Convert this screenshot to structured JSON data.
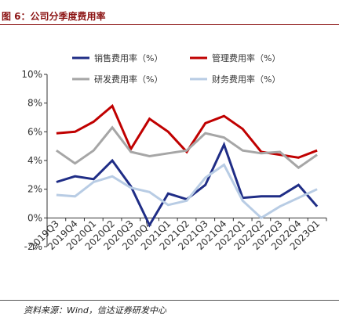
{
  "header": {
    "title": "图 6：公司分季度费用率"
  },
  "source": {
    "text": "资料来源：Wind，信达证券研发中心"
  },
  "chart_data": {
    "type": "line",
    "categories": [
      "2019Q3",
      "2019Q4",
      "2020Q1",
      "2020Q2",
      "2020Q3",
      "2020Q4",
      "2021Q1",
      "2021Q2",
      "2021Q3",
      "2021Q4",
      "2022Q1",
      "2022Q2",
      "2022Q3",
      "2022Q4",
      "2023Q1"
    ],
    "ylim": [
      -2,
      10
    ],
    "yticks": [
      -2,
      0,
      2,
      4,
      6,
      8,
      10
    ],
    "ytick_labels": [
      "-2%",
      "0%",
      "2%",
      "4%",
      "6%",
      "8%",
      "10%"
    ],
    "grid": false,
    "legend_position": "top",
    "series": [
      {
        "name": "销售费用率（%）",
        "color": "#1f2d86",
        "values": [
          2.5,
          2.9,
          2.7,
          4.0,
          2.2,
          -0.5,
          1.7,
          1.3,
          2.3,
          5.1,
          1.4,
          1.5,
          1.5,
          2.3,
          0.8
        ]
      },
      {
        "name": "管理费用率（%）",
        "color": "#c00000",
        "values": [
          5.9,
          6.0,
          6.7,
          7.8,
          4.8,
          6.9,
          6.0,
          4.6,
          6.6,
          7.1,
          6.2,
          4.6,
          4.4,
          4.2,
          4.7
        ]
      },
      {
        "name": "研发费用率（%）",
        "color": "#a6a6a6",
        "values": [
          4.7,
          3.8,
          4.7,
          6.3,
          4.6,
          4.3,
          4.5,
          4.7,
          5.9,
          5.6,
          4.7,
          4.5,
          4.6,
          3.5,
          4.4
        ]
      },
      {
        "name": "财务费用率（%）",
        "color": "#b8cce4",
        "values": [
          1.6,
          1.5,
          2.5,
          2.9,
          2.1,
          1.8,
          0.9,
          1.2,
          2.8,
          3.7,
          1.2,
          0.0,
          0.8,
          1.4,
          2.0
        ]
      }
    ]
  }
}
